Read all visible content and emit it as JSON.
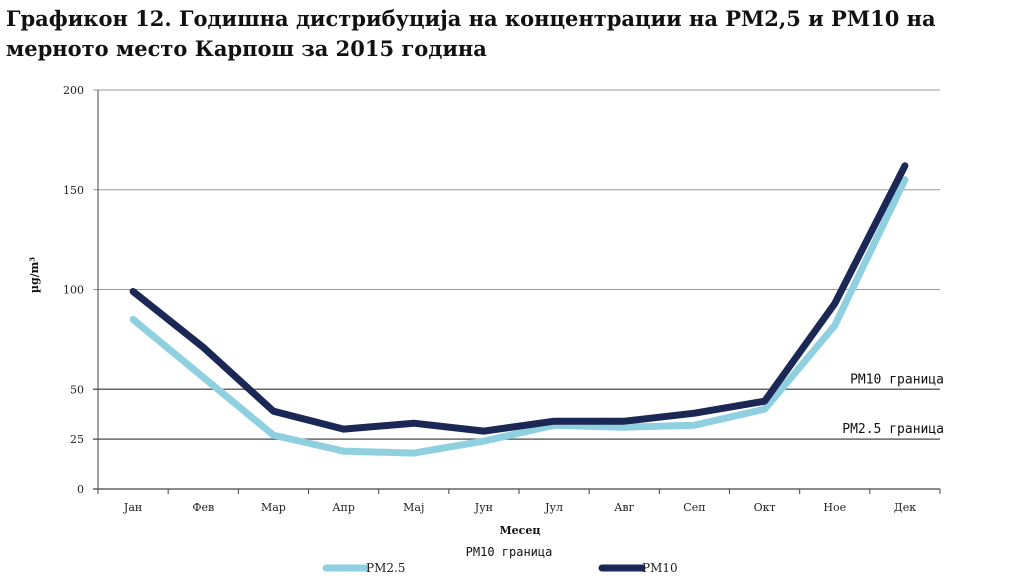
{
  "chart_data": {
    "type": "line",
    "title": "Графикон 12. Годишна дистрибуција на концентрации на РМ2,5 и РМ10 на мерното место Карпош за 2015 година",
    "xlabel": "Месец",
    "ylabel": "µg/m³",
    "categories": [
      "Јан",
      "Фев",
      "Мар",
      "Апр",
      "Мај",
      "Јун",
      "Јул",
      "Авг",
      "Сеп",
      "Окт",
      "Ное",
      "Дек"
    ],
    "yticks": [
      0,
      25,
      50,
      100,
      150,
      200
    ],
    "ylim": [
      0,
      200
    ],
    "grid": true,
    "series": [
      {
        "name": "PM2.5",
        "color": "#8fd0e0",
        "values": [
          85,
          56,
          27,
          19,
          18,
          24,
          32,
          31,
          32,
          40,
          82,
          155
        ]
      },
      {
        "name": "PM10",
        "color": "#1b2755",
        "values": [
          99,
          71,
          39,
          30,
          33,
          29,
          34,
          34,
          38,
          44,
          93,
          162
        ]
      }
    ],
    "reference_lines": [
      {
        "label": "РМ10 граница",
        "value": 50
      },
      {
        "label": "РМ2.5 граница",
        "value": 25
      }
    ],
    "legend": {
      "position": "bottom",
      "title": "РМ10 граница",
      "entries": [
        "PM2.5",
        "PM10"
      ]
    }
  }
}
